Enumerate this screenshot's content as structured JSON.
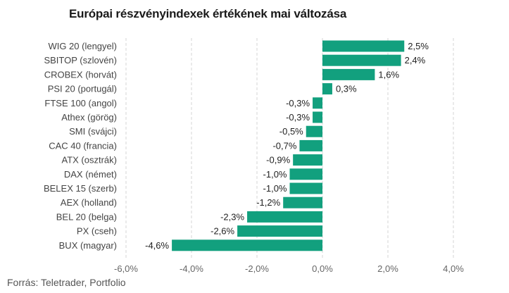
{
  "chart_data": {
    "type": "bar",
    "orientation": "horizontal",
    "title": "Európai részvényindexek értékének mai változása",
    "source": "Forrás: Teletrader, Portfolio",
    "categories": [
      "WIG 20 (lengyel)",
      "SBITOP (szlovén)",
      "CROBEX (horvát)",
      "PSI 20 (portugál)",
      "FTSE 100 (angol)",
      "Athex (görög)",
      "SMI (svájci)",
      "CAC 40 (francia)",
      "ATX (osztrák)",
      "DAX (német)",
      "BELEX 15 (szerb)",
      "AEX (holland)",
      "BEL 20 (belga)",
      "PX (cseh)",
      "BUX (magyar)"
    ],
    "values": [
      2.5,
      2.4,
      1.6,
      0.3,
      -0.3,
      -0.3,
      -0.5,
      -0.7,
      -0.9,
      -1.0,
      -1.0,
      -1.2,
      -2.3,
      -2.6,
      -4.6
    ],
    "value_labels": [
      "2,5%",
      "2,4%",
      "1,6%",
      "0,3%",
      "-0,3%",
      "-0,3%",
      "-0,5%",
      "-0,7%",
      "-0,9%",
      "-1,0%",
      "-1,0%",
      "-1,2%",
      "-2,3%",
      "-2,6%",
      "-4,6%"
    ],
    "xlim": [
      -6,
      4
    ],
    "xticks": [
      -6,
      -4,
      -2,
      0,
      2,
      4
    ],
    "xtick_labels": [
      "-6,0%",
      "-4,0%",
      "-2,0%",
      "0,0%",
      "2,0%",
      "4,0%"
    ],
    "grid": true,
    "bar_color": "#12a07e",
    "grid_color": "#d4d4d4"
  }
}
